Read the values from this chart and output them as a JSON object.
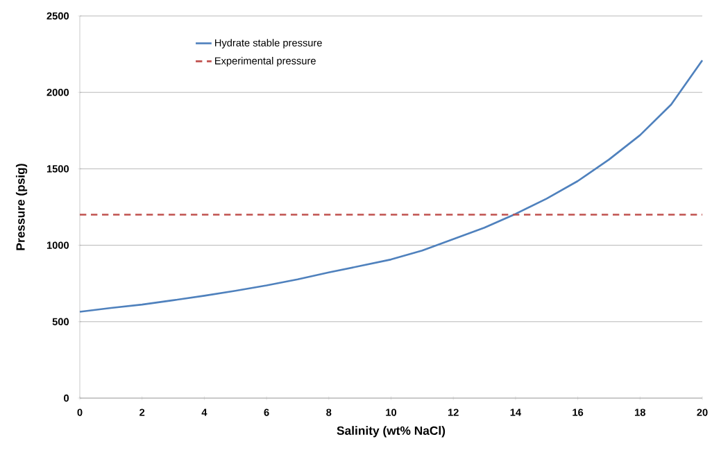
{
  "chart_data": {
    "type": "line",
    "xlabel": "Salinity (wt% NaCl)",
    "ylabel": "Pressure (psig)",
    "x": [
      0,
      1,
      2,
      3,
      4,
      5,
      6,
      7,
      8,
      9,
      10,
      11,
      12,
      13,
      14,
      15,
      16,
      17,
      18,
      19,
      20
    ],
    "series": [
      {
        "name": "Hydrate stable pressure",
        "color": "#4f81bd",
        "values": [
          565,
          590,
          612,
          640,
          670,
          702,
          737,
          777,
          822,
          864,
          907,
          965,
          1040,
          1115,
          1205,
          1305,
          1420,
          1560,
          1720,
          1920,
          2210
        ]
      }
    ],
    "ref_lines": [
      {
        "axis": "y",
        "value": 1200,
        "label": "Experimental pressure",
        "color": "#c0504d",
        "line_style": "dashed"
      }
    ],
    "xlim": [
      0,
      20
    ],
    "xticks": [
      0,
      2,
      4,
      6,
      8,
      10,
      12,
      14,
      16,
      18,
      20
    ],
    "ylim": [
      0,
      2500
    ],
    "yticks": [
      0,
      500,
      1000,
      1500,
      2000,
      2500
    ],
    "grid": "y",
    "legend": "top left",
    "marker": "none",
    "line_style": "solid"
  }
}
